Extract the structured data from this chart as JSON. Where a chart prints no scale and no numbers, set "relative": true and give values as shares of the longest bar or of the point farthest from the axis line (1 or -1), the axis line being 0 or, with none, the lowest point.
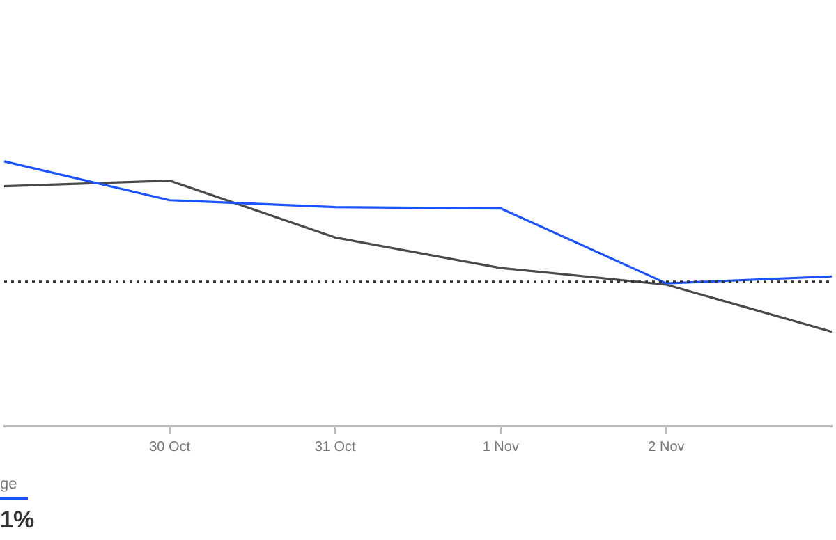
{
  "chart_data": {
    "type": "line",
    "relative": true,
    "categories": [
      null,
      "30 Oct",
      "31 Oct",
      "1 Nov",
      "2 Nov",
      null
    ],
    "series": [
      {
        "name": "ge",
        "color": "#1a53ff",
        "values": [
          1,
          0.853,
          0.827,
          0.822,
          0.539,
          0.565
        ]
      },
      {
        "color": "#4a4a4a",
        "values": [
          0.906,
          0.927,
          0.712,
          0.597,
          0.534,
          0.356
        ]
      }
    ],
    "ref_lines": [
      {
        "axis": "y",
        "value": 0.545,
        "color": "#333333",
        "line_style": "dotted"
      }
    ],
    "annotations": [
      "1%"
    ],
    "legend": "bottom left",
    "marker": "none",
    "line_style": "solid",
    "grid": false
  }
}
